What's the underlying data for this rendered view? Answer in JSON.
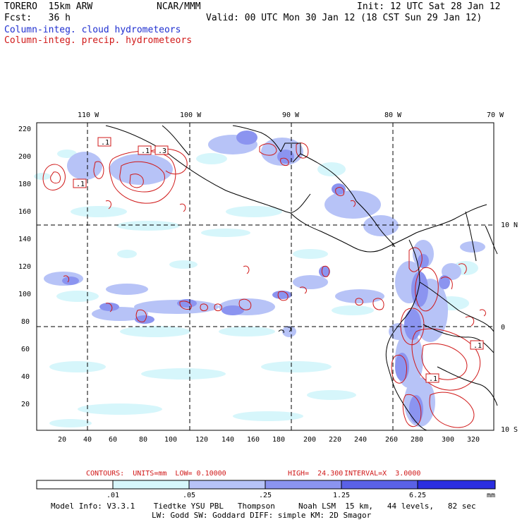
{
  "header": {
    "model": "TORERO  15km ARW",
    "org": "NCAR/MMM",
    "init": "Init: 12 UTC Sat 28 Jan 12",
    "fcst": "Fcst:   36 h",
    "valid": "Valid: 00 UTC Mon 30 Jan 12 (18 CST Sun 29 Jan 12)",
    "field1": "Column-integ. cloud hydrometeors",
    "field2": "Column-integ. precip. hydrometeors"
  },
  "map": {
    "lon_labels": [
      "110 W",
      "100 W",
      "90 W",
      "80 W",
      "70 W"
    ],
    "lat_labels": [
      "10 N",
      "0",
      "10 S"
    ],
    "y_ticks": [
      "220",
      "200",
      "180",
      "160",
      "140",
      "120",
      "100",
      "80",
      "60",
      "40",
      "20"
    ],
    "x_ticks": [
      "20",
      "40",
      "60",
      "80",
      "100",
      "120",
      "140",
      "160",
      "180",
      "200",
      "220",
      "240",
      "260",
      "280",
      "300",
      "320"
    ],
    "contour_labels": [
      ".1",
      ".1",
      ".3",
      ".1",
      ".1",
      ".1"
    ]
  },
  "contour_info": {
    "contours": "CONTOURS:  UNITS=mm  LOW= 0.10000",
    "high": "HIGH=  24.300",
    "interval": "INTERVAL=X  3.0000"
  },
  "colorbar": {
    "ticks": [
      ".01",
      ".05",
      ".25",
      "1.25",
      "6.25"
    ],
    "unit": "mm",
    "colors": [
      "#ffffff",
      "#d6f6fb",
      "#b7c3f7",
      "#8b94f0",
      "#5a61e6",
      "#2b2ee0"
    ]
  },
  "footer": {
    "line1": "Model Info: V3.3.1    Tiedtke YSU PBL   Thompson     Noah LSM  15 km,   44 levels,   82 sec",
    "line2": "LW: Godd SW: Goddard DIFF: simple KM: 2D Smagor"
  }
}
